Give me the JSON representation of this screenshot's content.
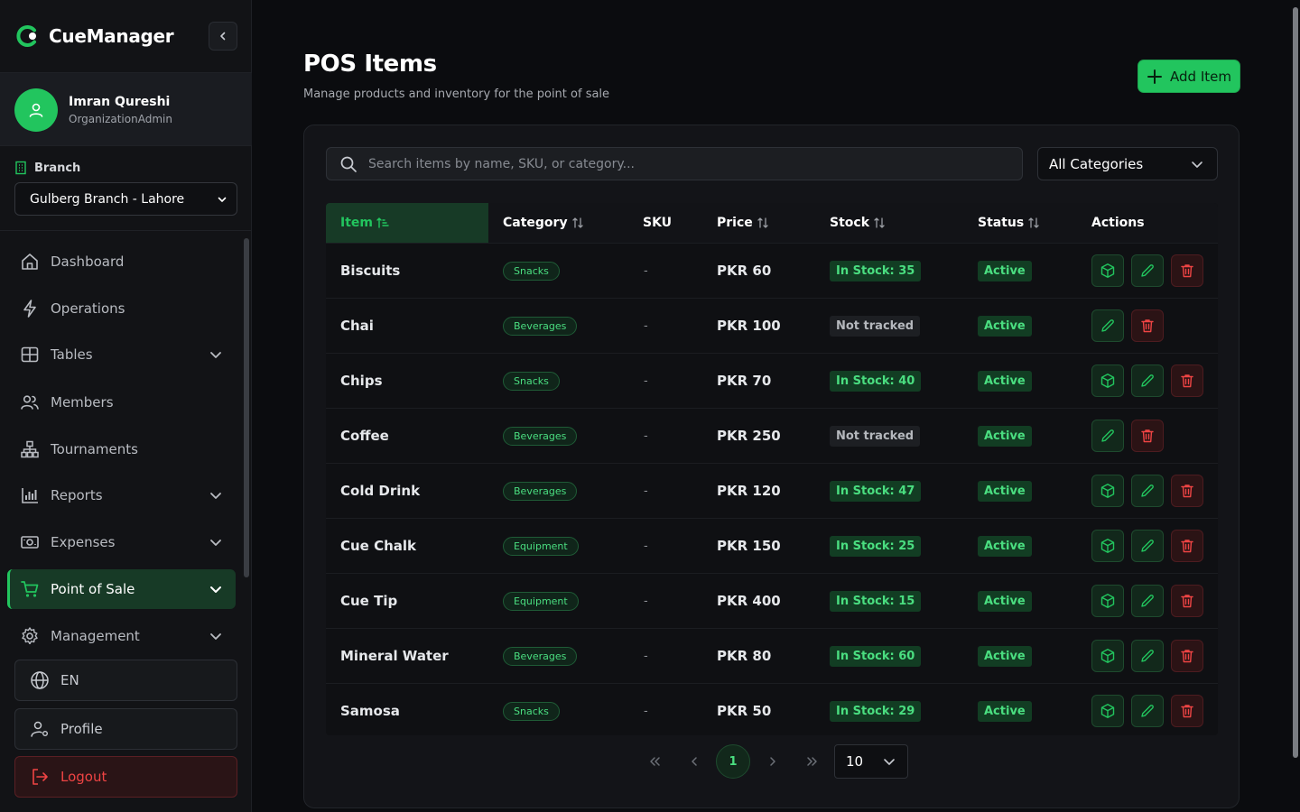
{
  "app": {
    "name": "CueManager"
  },
  "user": {
    "name": "Imran Qureshi",
    "role": "OrganizationAdmin"
  },
  "branch": {
    "label": "Branch",
    "selected": "Gulberg Branch - Lahore"
  },
  "nav": [
    {
      "label": "Dashboard",
      "icon": "home-icon",
      "expandable": false
    },
    {
      "label": "Operations",
      "icon": "bolt-icon",
      "expandable": false
    },
    {
      "label": "Tables",
      "icon": "grid-icon",
      "expandable": true
    },
    {
      "label": "Members",
      "icon": "users-icon",
      "expandable": false
    },
    {
      "label": "Tournaments",
      "icon": "network-icon",
      "expandable": false
    },
    {
      "label": "Reports",
      "icon": "bar-chart-icon",
      "expandable": true
    },
    {
      "label": "Expenses",
      "icon": "cash-icon",
      "expandable": true
    },
    {
      "label": "Point of Sale",
      "icon": "cart-icon",
      "expandable": true,
      "active": true
    },
    {
      "label": "Management",
      "icon": "gear-icon",
      "expandable": true
    }
  ],
  "bottom": {
    "language": "EN",
    "profile": "Profile",
    "logout": "Logout"
  },
  "header": {
    "title": "POS Items",
    "subtitle": "Manage products and inventory for the point of sale",
    "add_label": "Add Item"
  },
  "filters": {
    "search_placeholder": "Search items by name, SKU, or category...",
    "category": "All Categories"
  },
  "table": {
    "columns": [
      "Item",
      "Category",
      "SKU",
      "Price",
      "Stock",
      "Status",
      "Actions"
    ],
    "rows": [
      {
        "name": "Biscuits",
        "category": "Snacks",
        "sku": "-",
        "price": "PKR 60",
        "stock": "In Stock: 35",
        "tracked": true,
        "status": "Active"
      },
      {
        "name": "Chai",
        "category": "Beverages",
        "sku": "-",
        "price": "PKR 100",
        "stock": "Not tracked",
        "tracked": false,
        "status": "Active"
      },
      {
        "name": "Chips",
        "category": "Snacks",
        "sku": "-",
        "price": "PKR 70",
        "stock": "In Stock: 40",
        "tracked": true,
        "status": "Active"
      },
      {
        "name": "Coffee",
        "category": "Beverages",
        "sku": "-",
        "price": "PKR 250",
        "stock": "Not tracked",
        "tracked": false,
        "status": "Active"
      },
      {
        "name": "Cold Drink",
        "category": "Beverages",
        "sku": "-",
        "price": "PKR 120",
        "stock": "In Stock: 47",
        "tracked": true,
        "status": "Active"
      },
      {
        "name": "Cue Chalk",
        "category": "Equipment",
        "sku": "-",
        "price": "PKR 150",
        "stock": "In Stock: 25",
        "tracked": true,
        "status": "Active"
      },
      {
        "name": "Cue Tip",
        "category": "Equipment",
        "sku": "-",
        "price": "PKR 400",
        "stock": "In Stock: 15",
        "tracked": true,
        "status": "Active"
      },
      {
        "name": "Mineral Water",
        "category": "Beverages",
        "sku": "-",
        "price": "PKR 80",
        "stock": "In Stock: 60",
        "tracked": true,
        "status": "Active"
      },
      {
        "name": "Samosa",
        "category": "Snacks",
        "sku": "-",
        "price": "PKR 50",
        "stock": "In Stock: 29",
        "tracked": true,
        "status": "Active"
      }
    ]
  },
  "pagination": {
    "current_page": "1",
    "page_size": "10"
  },
  "colors": {
    "accent": "#22c55e",
    "danger": "#ef4444",
    "background": "#0b0c0f"
  }
}
